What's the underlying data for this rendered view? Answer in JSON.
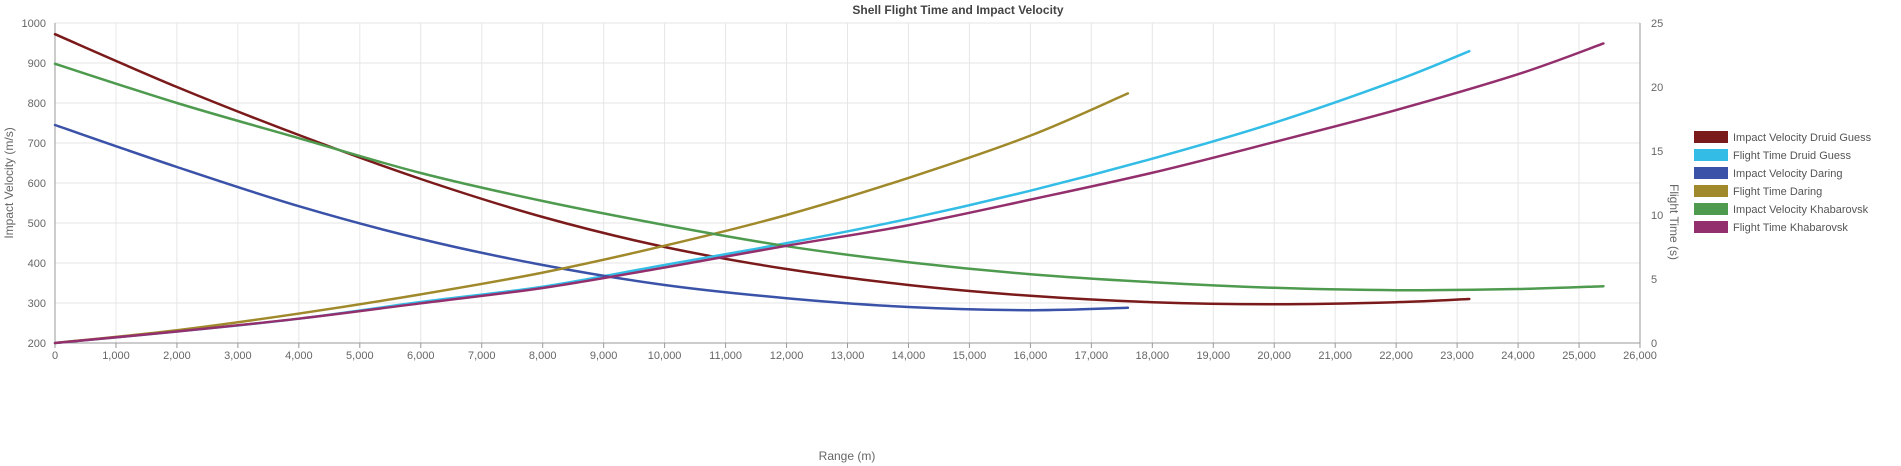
{
  "chart_data": {
    "type": "line",
    "title": "Shell Flight Time and Impact Velocity",
    "xlabel": "Range (m)",
    "ylabel_left": "Impact Velocity (m/s)",
    "ylabel_right": "Flight Time (s)",
    "xlim": [
      0,
      26000
    ],
    "xticks": [
      "0",
      "1,000",
      "2,000",
      "3,000",
      "4,000",
      "5,000",
      "6,000",
      "7,000",
      "8,000",
      "9,000",
      "10,000",
      "11,000",
      "12,000",
      "13,000",
      "14,000",
      "15,000",
      "16,000",
      "17,000",
      "18,000",
      "19,000",
      "20,000",
      "21,000",
      "22,000",
      "23,000",
      "24,000",
      "25,000",
      "26,000"
    ],
    "ylim_left": [
      200,
      1000
    ],
    "yticks_left": [
      "200",
      "300",
      "400",
      "500",
      "600",
      "700",
      "800",
      "900",
      "1000"
    ],
    "ylim_right": [
      0,
      25
    ],
    "yticks_right": [
      "0",
      "5",
      "10",
      "15",
      "20",
      "25"
    ],
    "grid": true,
    "legend_position": "right",
    "series": [
      {
        "name": "Impact Velocity Druid Guess",
        "axis": "left",
        "color": "#7b1a1a",
        "x": [
          0,
          2000,
          4000,
          6000,
          8000,
          10000,
          12000,
          14000,
          16000,
          18000,
          20000,
          22000,
          23200
        ],
        "y": [
          972,
          840,
          720,
          610,
          515,
          440,
          385,
          345,
          318,
          302,
          297,
          302,
          310
        ]
      },
      {
        "name": "Flight Time Druid Guess",
        "axis": "right",
        "color": "#33bde6",
        "x": [
          0,
          2000,
          4000,
          6000,
          8000,
          10000,
          12000,
          14000,
          16000,
          18000,
          20000,
          22000,
          23200
        ],
        "y": [
          0,
          0.9,
          1.9,
          3.2,
          4.4,
          6.1,
          7.8,
          9.7,
          11.9,
          14.4,
          17.2,
          20.5,
          22.8
        ]
      },
      {
        "name": "Impact Velocity Daring",
        "axis": "left",
        "color": "#3a52a8",
        "x": [
          0,
          2000,
          4000,
          6000,
          8000,
          10000,
          12000,
          14000,
          16000,
          17600
        ],
        "y": [
          745,
          640,
          542,
          460,
          395,
          345,
          312,
          290,
          282,
          288
        ]
      },
      {
        "name": "Flight Time Daring",
        "axis": "right",
        "color": "#a0892a",
        "x": [
          0,
          2000,
          4000,
          6000,
          8000,
          10000,
          12000,
          14000,
          16000,
          17600
        ],
        "y": [
          0,
          1.0,
          2.3,
          3.8,
          5.5,
          7.6,
          10.0,
          12.9,
          16.2,
          19.5
        ]
      },
      {
        "name": "Impact Velocity Khabarovsk",
        "axis": "left",
        "color": "#4e9a4e",
        "x": [
          0,
          2000,
          4000,
          6000,
          8000,
          10000,
          12000,
          14000,
          16000,
          18000,
          20000,
          22000,
          24000,
          25400
        ],
        "y": [
          898,
          800,
          712,
          625,
          555,
          495,
          442,
          402,
          372,
          352,
          338,
          332,
          335,
          342
        ]
      },
      {
        "name": "Flight Time Khabarovsk",
        "axis": "right",
        "color": "#932f6d",
        "x": [
          0,
          2000,
          4000,
          6000,
          8000,
          10000,
          12000,
          14000,
          16000,
          18000,
          20000,
          22000,
          24000,
          25400
        ],
        "y": [
          0,
          0.9,
          1.9,
          3.1,
          4.3,
          5.9,
          7.6,
          9.2,
          11.2,
          13.3,
          15.7,
          18.2,
          21.0,
          23.4
        ]
      }
    ]
  }
}
